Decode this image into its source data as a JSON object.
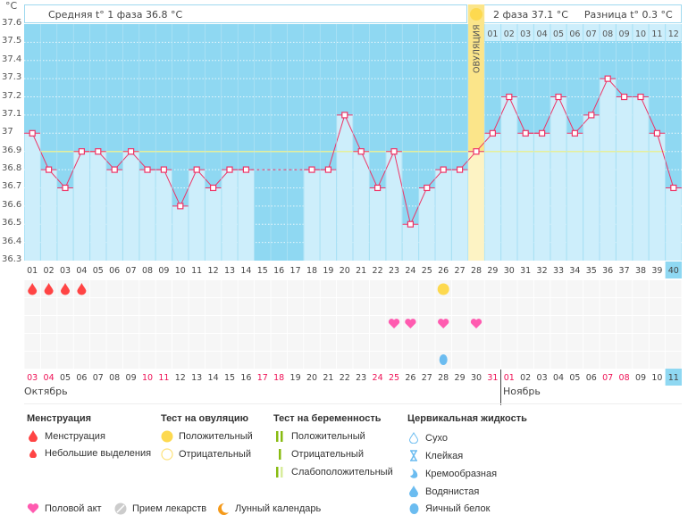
{
  "chart_data": {
    "type": "bar",
    "unit_label": "°C",
    "ylim": [
      36.3,
      37.6
    ],
    "yticks": [
      "37.6",
      "37.5",
      "37.4",
      "37.3",
      "37.2",
      "37.1",
      "37",
      "36.9",
      "36.8",
      "36.7",
      "36.6",
      "36.5",
      "36.4",
      "36.3"
    ],
    "coverline": 36.9,
    "cycle_days": [
      "01",
      "02",
      "03",
      "04",
      "05",
      "06",
      "07",
      "08",
      "09",
      "10",
      "11",
      "12",
      "13",
      "14",
      "15",
      "16",
      "17",
      "18",
      "19",
      "20",
      "21",
      "22",
      "23",
      "24",
      "25",
      "26",
      "27",
      "28",
      "29",
      "30",
      "31",
      "32",
      "33",
      "34",
      "35",
      "36",
      "37",
      "38",
      "39",
      "40"
    ],
    "temperatures": [
      37.0,
      36.8,
      36.7,
      36.9,
      36.9,
      36.8,
      36.9,
      36.8,
      36.8,
      36.6,
      36.8,
      36.7,
      36.8,
      36.8,
      null,
      null,
      null,
      36.8,
      36.8,
      37.1,
      36.9,
      36.7,
      36.9,
      36.5,
      36.7,
      36.8,
      36.8,
      36.9,
      37.0,
      37.2,
      37.0,
      37.0,
      37.2,
      37.0,
      37.1,
      37.3,
      37.2,
      37.2,
      37.0,
      36.7
    ],
    "dates": [
      "03",
      "04",
      "05",
      "06",
      "07",
      "08",
      "09",
      "10",
      "11",
      "12",
      "13",
      "14",
      "15",
      "16",
      "17",
      "18",
      "19",
      "20",
      "21",
      "22",
      "23",
      "24",
      "25",
      "26",
      "27",
      "28",
      "29",
      "30",
      "31",
      "01",
      "02",
      "03",
      "04",
      "05",
      "06",
      "07",
      "08",
      "09",
      "10",
      "11"
    ],
    "weekend_dates_idx": [
      0,
      1,
      7,
      8,
      14,
      15,
      21,
      22,
      28,
      29,
      35,
      36
    ],
    "months": [
      {
        "label": "Октябрь"
      },
      {
        "label": "Ноябрь"
      }
    ],
    "ovulation_day": 28,
    "ovulation_label": "ОВУЛЯЦИЯ",
    "phase2_days": [
      "01",
      "02",
      "03",
      "04",
      "05",
      "06",
      "07",
      "08",
      "09",
      "10",
      "11",
      "12"
    ],
    "today_day": 40,
    "markers": {
      "menstruation": [
        1,
        2,
        3,
        4
      ],
      "ovulation_test_positive": [
        26
      ],
      "intercourse": [
        23,
        24,
        26,
        28
      ],
      "cervical_fluid": [
        26
      ]
    }
  },
  "header": {
    "phase1": "Средняя t° 1 фаза 36.8 °C",
    "phase2": "2 фаза 37.1 °C",
    "diff": "Разница t° 0.3 °C"
  },
  "legend": {
    "menstruation": {
      "title": "Менструация",
      "items": [
        "Менструация",
        "Небольшие выделения"
      ]
    },
    "ovulation_test": {
      "title": "Тест на овуляцию",
      "items": [
        "Положительный",
        "Отрицательный"
      ]
    },
    "pregnancy_test": {
      "title": "Тест на беременность",
      "items": [
        "Положительный",
        "Отрицательный",
        "Слабоположительный"
      ]
    },
    "cervical": {
      "title": "Цервикальная жидкость",
      "items": [
        "Сухо",
        "Клейкая",
        "Кремообразная",
        "Водянистая",
        "Яичный белок"
      ]
    },
    "bottom": [
      "Половой акт",
      "Прием лекарств",
      "Лунный календарь"
    ]
  },
  "colors": {
    "bg_blue": "#8fd8f2",
    "bar_blue": "#cdeefb",
    "line_pink": "#ee3366",
    "ovulation": "#fbe58a",
    "coverline": "#e6ef9a",
    "weekend": "#ee1155",
    "drop": "#ff4444",
    "heart": "#ff5bb0",
    "fluid": "#6bbcf0"
  }
}
